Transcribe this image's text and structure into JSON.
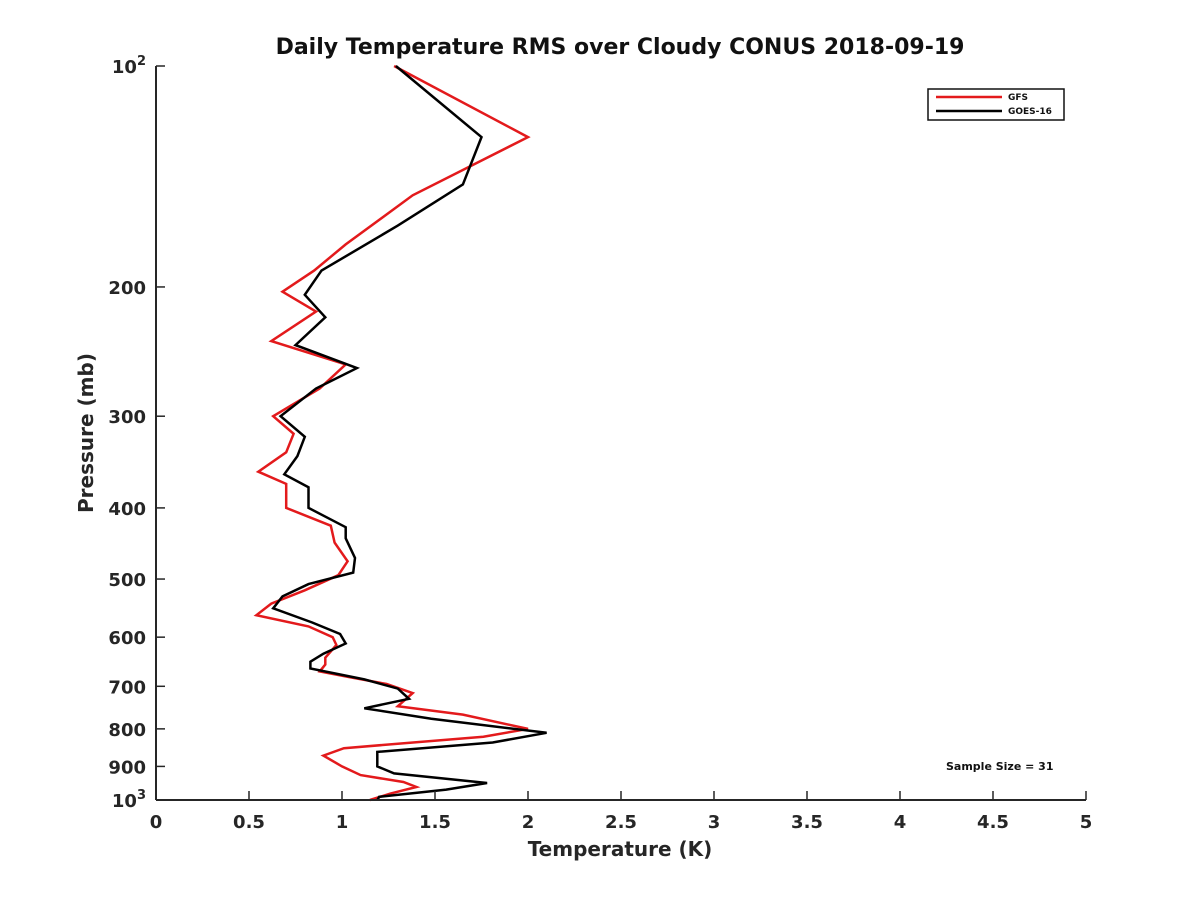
{
  "chart_data": {
    "type": "line",
    "title": "Daily Temperature RMS over Cloudy CONUS 2018-09-19",
    "xlabel": "Temperature (K)",
    "ylabel": "Pressure (mb)",
    "xlim": [
      0,
      5
    ],
    "ylim": [
      100,
      1000
    ],
    "y_scale": "log",
    "y_reversed": true,
    "grid": false,
    "legend_position": "top-right",
    "x_ticks": [
      "0",
      "0.5",
      "1",
      "1.5",
      "2",
      "2.5",
      "3",
      "3.5",
      "4",
      "4.5",
      "5"
    ],
    "y_ticks": [
      {
        "value": 100,
        "base": "10",
        "exp": "2"
      },
      {
        "value": 200,
        "label": "200"
      },
      {
        "value": 300,
        "label": "300"
      },
      {
        "value": 400,
        "label": "400"
      },
      {
        "value": 500,
        "label": "500"
      },
      {
        "value": 600,
        "label": "600"
      },
      {
        "value": 700,
        "label": "700"
      },
      {
        "value": 800,
        "label": "800"
      },
      {
        "value": 900,
        "label": "900"
      },
      {
        "value": 1000,
        "base": "10",
        "exp": "3"
      }
    ],
    "annotation": "Sample Size = 31",
    "series": [
      {
        "name": "GFS",
        "color": "#e31a1c",
        "points": [
          [
            1.28,
            100
          ],
          [
            2.0,
            125
          ],
          [
            1.38,
            150
          ],
          [
            1.02,
            175
          ],
          [
            0.85,
            190
          ],
          [
            0.68,
            203
          ],
          [
            0.86,
            216
          ],
          [
            0.62,
            237
          ],
          [
            1.02,
            255
          ],
          [
            0.88,
            275
          ],
          [
            0.63,
            300
          ],
          [
            0.74,
            317
          ],
          [
            0.7,
            336
          ],
          [
            0.55,
            357
          ],
          [
            0.7,
            371
          ],
          [
            0.7,
            400
          ],
          [
            0.94,
            423
          ],
          [
            0.96,
            446
          ],
          [
            1.03,
            473
          ],
          [
            0.98,
            494
          ],
          [
            0.8,
            518
          ],
          [
            0.62,
            540
          ],
          [
            0.54,
            560
          ],
          [
            0.82,
            580
          ],
          [
            0.95,
            600
          ],
          [
            0.97,
            615
          ],
          [
            0.91,
            640
          ],
          [
            0.91,
            654
          ],
          [
            0.88,
            668
          ],
          [
            1.04,
            680
          ],
          [
            1.24,
            695
          ],
          [
            1.38,
            715
          ],
          [
            1.3,
            745
          ],
          [
            1.65,
            765
          ],
          [
            2.0,
            800
          ],
          [
            1.76,
            820
          ],
          [
            1.01,
            850
          ],
          [
            0.9,
            870
          ],
          [
            1.0,
            900
          ],
          [
            1.1,
            925
          ],
          [
            1.33,
            945
          ],
          [
            1.4,
            960
          ],
          [
            1.26,
            980
          ],
          [
            1.15,
            1000
          ]
        ]
      },
      {
        "name": "GOES-16",
        "color": "#000000",
        "points": [
          [
            1.29,
            100
          ],
          [
            1.75,
            125
          ],
          [
            1.65,
            145
          ],
          [
            1.3,
            165
          ],
          [
            0.89,
            190
          ],
          [
            0.8,
            205
          ],
          [
            0.91,
            220
          ],
          [
            0.75,
            240
          ],
          [
            1.08,
            258
          ],
          [
            0.86,
            275
          ],
          [
            0.67,
            300
          ],
          [
            0.8,
            320
          ],
          [
            0.76,
            340
          ],
          [
            0.69,
            360
          ],
          [
            0.82,
            375
          ],
          [
            0.82,
            400
          ],
          [
            1.02,
            425
          ],
          [
            1.02,
            440
          ],
          [
            1.07,
            468
          ],
          [
            1.06,
            490
          ],
          [
            0.82,
            508
          ],
          [
            0.68,
            528
          ],
          [
            0.63,
            548
          ],
          [
            0.84,
            573
          ],
          [
            0.99,
            594
          ],
          [
            1.02,
            612
          ],
          [
            0.9,
            632
          ],
          [
            0.83,
            648
          ],
          [
            0.83,
            662
          ],
          [
            1.12,
            685
          ],
          [
            1.3,
            705
          ],
          [
            1.36,
            728
          ],
          [
            1.12,
            750
          ],
          [
            1.48,
            775
          ],
          [
            2.1,
            810
          ],
          [
            1.81,
            835
          ],
          [
            1.19,
            860
          ],
          [
            1.19,
            900
          ],
          [
            1.28,
            920
          ],
          [
            1.78,
            948
          ],
          [
            1.56,
            968
          ],
          [
            1.2,
            990
          ],
          [
            1.19,
            1000
          ]
        ]
      }
    ]
  }
}
